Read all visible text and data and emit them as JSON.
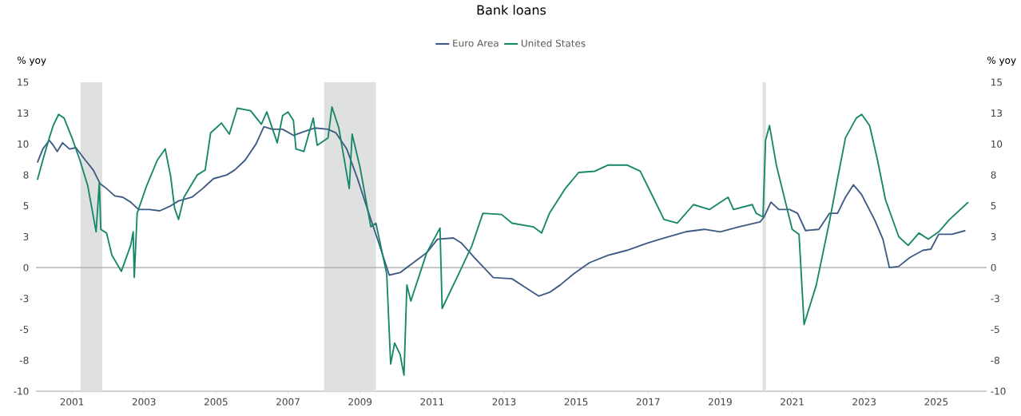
{
  "chart_data": {
    "type": "line",
    "title": "Bank loans",
    "ylabel": "% yoy",
    "y2label": "% yoy",
    "legend": "top",
    "xlim": [
      2000,
      2026.4
    ],
    "xticks": [
      2001,
      2003,
      2005,
      2007,
      2009,
      2011,
      2013,
      2015,
      2017,
      2019,
      2021,
      2023,
      2025
    ],
    "ylim": [
      -10,
      15
    ],
    "yticks": [
      -10,
      {
        "value": -7.5,
        "label": "-8"
      },
      -5,
      {
        "value": -2.5,
        "label": "-3"
      },
      0,
      {
        "value": 2.5,
        "label": "3"
      },
      5,
      {
        "value": 7.5,
        "label": "8"
      },
      10,
      {
        "value": 12.5,
        "label": "13"
      },
      15
    ],
    "y2lim": [
      -10,
      15
    ],
    "y2ticks": [
      -10,
      {
        "value": -7.5,
        "label": "-8"
      },
      -5,
      {
        "value": -2.5,
        "label": "-3"
      },
      0,
      {
        "value": 2.5,
        "label": "3"
      },
      5,
      {
        "value": 7.5,
        "label": "8"
      },
      10,
      {
        "value": 12.5,
        "label": "13"
      },
      15
    ],
    "ref_lines": [
      {
        "axis": "y",
        "value": 0,
        "color": "#a6a6a6"
      }
    ],
    "bands": [
      {
        "axis": "x",
        "from": 2001.24,
        "to": 2001.84,
        "color": "#dfe1e0"
      },
      {
        "axis": "x",
        "from": 2008.0,
        "to": 2009.44,
        "color": "#dfe1e0"
      },
      {
        "axis": "x",
        "from": 2020.18,
        "to": 2020.27,
        "color": "#dfe1e0"
      }
    ],
    "series": [
      {
        "name": "Euro Area",
        "color": "#3f5a84",
        "x": [
          2000.04,
          2000.19,
          2000.37,
          2000.48,
          2000.59,
          2000.74,
          2000.93,
          2001.11,
          2001.37,
          2001.59,
          2001.78,
          2001.96,
          2002.19,
          2002.41,
          2002.63,
          2002.85,
          2003.15,
          2003.44,
          2003.74,
          2003.96,
          2004.33,
          2004.63,
          2004.93,
          2005.3,
          2005.52,
          2005.81,
          2006.11,
          2006.33,
          2006.56,
          2006.85,
          2007.15,
          2007.44,
          2007.74,
          2008.11,
          2008.33,
          2008.63,
          2008.93,
          2009.22,
          2009.52,
          2009.81,
          2010.11,
          2010.48,
          2010.85,
          2011.15,
          2011.59,
          2011.81,
          2012.18,
          2012.7,
          2013.22,
          2013.59,
          2013.96,
          2014.26,
          2014.56,
          2014.93,
          2015.37,
          2015.89,
          2016.41,
          2017.0,
          2017.44,
          2018.04,
          2018.56,
          2019.0,
          2019.52,
          2020.11,
          2020.22,
          2020.41,
          2020.63,
          2020.93,
          2021.15,
          2021.37,
          2021.74,
          2022.04,
          2022.26,
          2022.48,
          2022.7,
          2022.93,
          2023.3,
          2023.52,
          2023.7,
          2023.96,
          2024.26,
          2024.63,
          2024.85,
          2025.07,
          2025.44,
          2025.81
        ],
        "values": [
          8.5,
          9.6,
          10.3,
          9.9,
          9.4,
          10.1,
          9.6,
          9.7,
          8.7,
          7.9,
          6.8,
          6.4,
          5.8,
          5.7,
          5.3,
          4.7,
          4.7,
          4.6,
          5.0,
          5.4,
          5.7,
          6.4,
          7.2,
          7.5,
          7.9,
          8.7,
          10.0,
          11.4,
          11.2,
          11.2,
          10.7,
          11.0,
          11.3,
          11.2,
          10.9,
          9.6,
          7.2,
          4.6,
          2.0,
          -0.6,
          -0.4,
          0.4,
          1.2,
          2.3,
          2.4,
          2.0,
          0.8,
          -0.8,
          -0.9,
          -1.6,
          -2.3,
          -2.0,
          -1.4,
          -0.5,
          0.4,
          1.0,
          1.4,
          2.0,
          2.4,
          2.9,
          3.1,
          2.9,
          3.3,
          3.7,
          4.1,
          5.3,
          4.7,
          4.7,
          4.4,
          3.0,
          3.1,
          4.4,
          4.4,
          5.7,
          6.7,
          5.9,
          3.8,
          2.3,
          0.0,
          0.1,
          0.8,
          1.4,
          1.5,
          2.7,
          2.7,
          3.0
        ]
      },
      {
        "name": "United States",
        "color": "#17876a",
        "x": [
          2000.04,
          2000.19,
          2000.37,
          2000.48,
          2000.63,
          2000.78,
          2001.0,
          2001.22,
          2001.44,
          2001.67,
          2001.76,
          2001.8,
          2001.96,
          2002.11,
          2002.37,
          2002.63,
          2002.7,
          2002.73,
          2002.81,
          2003.07,
          2003.37,
          2003.59,
          2003.74,
          2003.85,
          2003.96,
          2004.11,
          2004.48,
          2004.7,
          2004.85,
          2005.15,
          2005.37,
          2005.59,
          2005.96,
          2006.26,
          2006.41,
          2006.7,
          2006.85,
          2007.0,
          2007.15,
          2007.22,
          2007.44,
          2007.7,
          2007.81,
          2008.11,
          2008.22,
          2008.41,
          2008.7,
          2008.78,
          2009.0,
          2009.3,
          2009.44,
          2009.74,
          2009.85,
          2009.96,
          2010.11,
          2010.22,
          2010.3,
          2010.41,
          2010.85,
          2011.22,
          2011.28,
          2011.74,
          2012.11,
          2012.41,
          2012.93,
          2013.22,
          2013.81,
          2014.04,
          2014.26,
          2014.7,
          2015.07,
          2015.52,
          2015.89,
          2016.41,
          2016.78,
          2017.07,
          2017.44,
          2017.81,
          2018.26,
          2018.7,
          2019.22,
          2019.37,
          2019.89,
          2020.0,
          2020.19,
          2020.26,
          2020.37,
          2020.56,
          2021.0,
          2021.19,
          2021.33,
          2021.67,
          2022.04,
          2022.26,
          2022.48,
          2022.78,
          2022.93,
          2023.15,
          2023.37,
          2023.59,
          2023.96,
          2024.22,
          2024.52,
          2024.78,
          2025.07,
          2025.37,
          2025.89
        ],
        "values": [
          7.1,
          8.7,
          10.5,
          11.5,
          12.4,
          12.1,
          10.5,
          8.7,
          6.6,
          2.9,
          6.9,
          3.1,
          2.8,
          1.0,
          -0.3,
          1.8,
          2.9,
          -0.8,
          4.4,
          6.6,
          8.7,
          9.6,
          7.4,
          4.8,
          3.9,
          5.7,
          7.5,
          7.9,
          10.9,
          11.7,
          10.8,
          12.9,
          12.7,
          11.6,
          12.6,
          10.1,
          12.3,
          12.6,
          11.9,
          9.6,
          9.4,
          12.1,
          9.9,
          10.5,
          13.0,
          11.3,
          6.4,
          10.8,
          8.1,
          3.3,
          3.6,
          -0.5,
          -7.8,
          -6.1,
          -7.0,
          -8.7,
          -1.4,
          -2.7,
          1.2,
          3.2,
          -3.3,
          -0.5,
          1.8,
          4.4,
          4.3,
          3.6,
          3.3,
          2.8,
          4.4,
          6.4,
          7.7,
          7.8,
          8.3,
          8.3,
          7.8,
          6.1,
          3.9,
          3.6,
          5.1,
          4.7,
          5.7,
          4.7,
          5.1,
          4.4,
          4.1,
          10.3,
          11.5,
          8.3,
          3.1,
          2.7,
          -4.6,
          -1.4,
          3.8,
          7.2,
          10.5,
          12.1,
          12.4,
          11.5,
          8.7,
          5.5,
          2.5,
          1.8,
          2.8,
          2.3,
          2.9,
          3.9,
          5.3
        ]
      }
    ]
  }
}
